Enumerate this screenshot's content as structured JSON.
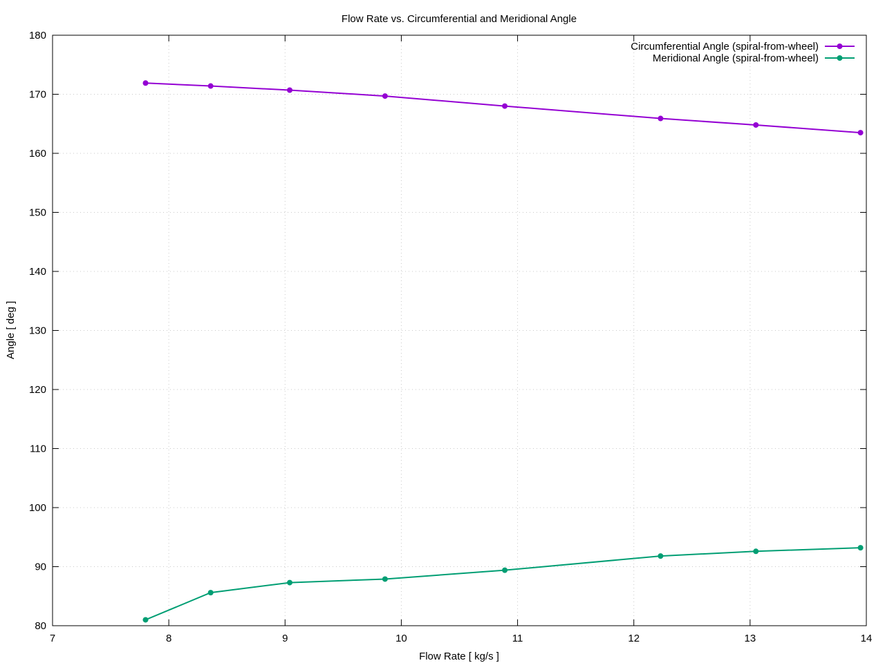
{
  "chart_data": {
    "type": "line",
    "title": "Flow Rate vs. Circumferential and Meridional Angle",
    "xlabel": "Flow Rate [ kg/s ]",
    "ylabel": "Angle [ deg ]",
    "xlim": [
      7,
      14
    ],
    "ylim": [
      80,
      180
    ],
    "xticks": [
      7,
      8,
      9,
      10,
      11,
      12,
      13,
      14
    ],
    "yticks": [
      80,
      90,
      100,
      110,
      120,
      130,
      140,
      150,
      160,
      170,
      180
    ],
    "grid": true,
    "legend_position": "top-right",
    "series": [
      {
        "name": "Circumferential Angle (spiral-from-wheel)",
        "color": "#9400d3",
        "x": [
          7.8,
          8.36,
          9.04,
          9.86,
          10.89,
          12.23,
          13.05,
          13.95
        ],
        "y": [
          171.9,
          171.4,
          170.7,
          169.7,
          168.0,
          165.9,
          164.8,
          163.5
        ]
      },
      {
        "name": "Meridional Angle (spiral-from-wheel)",
        "color": "#009e73",
        "x": [
          7.8,
          8.36,
          9.04,
          9.86,
          10.89,
          12.23,
          13.05,
          13.95
        ],
        "y": [
          81.0,
          85.6,
          87.3,
          87.9,
          89.4,
          91.8,
          92.6,
          93.2
        ]
      }
    ]
  }
}
